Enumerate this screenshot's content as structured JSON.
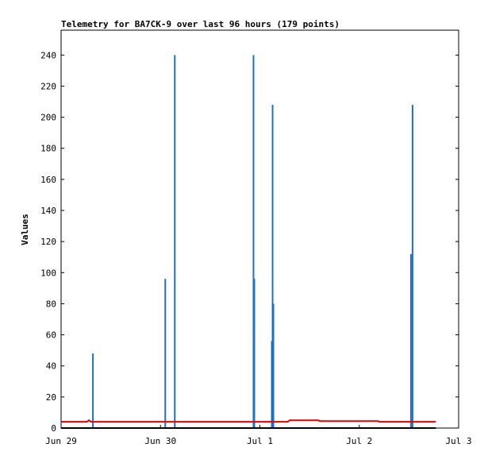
{
  "chart_data": {
    "type": "line",
    "title": "Telemetry for BA7CK-9 over last 96 hours (179 points)",
    "y_label": "Values",
    "xlim": [
      0,
      4
    ],
    "xticks": [
      {
        "value": 0,
        "label": "Jun 29"
      },
      {
        "value": 1,
        "label": "Jun 30"
      },
      {
        "value": 2,
        "label": "Jul 1"
      },
      {
        "value": 3,
        "label": "Jul 2"
      },
      {
        "value": 4,
        "label": "Jul 3"
      }
    ],
    "ylim": [
      0,
      256
    ],
    "yticks": [
      0,
      20,
      40,
      60,
      80,
      100,
      120,
      140,
      160,
      180,
      200,
      220,
      240
    ],
    "series": [
      {
        "style": "spike",
        "color": "#1f6fc5",
        "x": [
          0.32,
          1.048,
          1.144,
          1.936,
          1.944,
          2.12,
          2.128,
          2.136,
          3.52,
          3.536
        ],
        "values": [
          48,
          96,
          240,
          240,
          96,
          56,
          208,
          80,
          112,
          208
        ]
      },
      {
        "style": "line",
        "color": "#e00000",
        "x": [
          0,
          0.26,
          0.28,
          0.3,
          0.34,
          2.28,
          2.3,
          2.59,
          2.6,
          3.19,
          3.2,
          3.77
        ],
        "values": [
          4,
          4,
          5,
          4,
          4,
          4,
          5,
          5,
          4.5,
          4.5,
          4,
          4
        ]
      },
      {
        "style": "line",
        "color": "#000000",
        "x": [
          0,
          3.77
        ],
        "values": [
          0,
          0
        ]
      }
    ]
  }
}
